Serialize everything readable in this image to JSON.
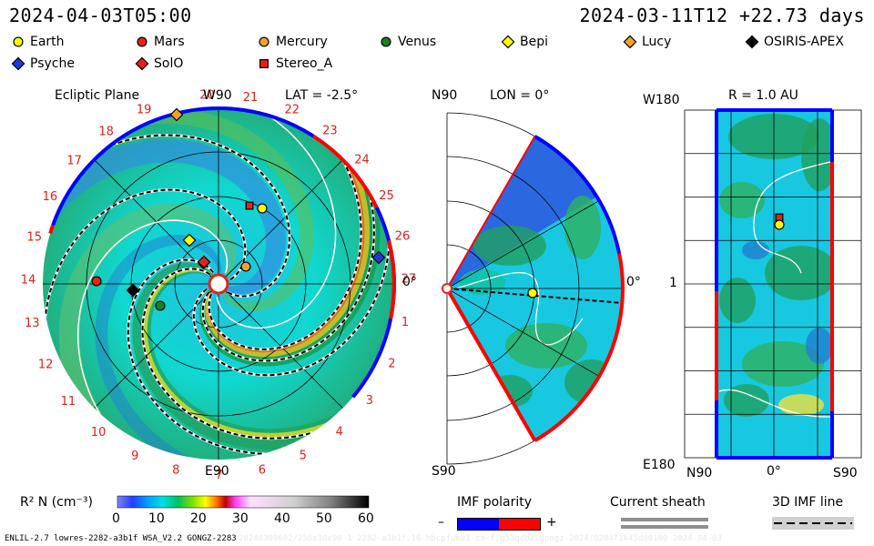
{
  "header": {
    "time": "2024-04-03T05:00",
    "model_run": "2024-03-11T12 +22.73 days"
  },
  "legend": [
    {
      "name": "Earth",
      "marker": "circle",
      "color": "#ffff00"
    },
    {
      "name": "Mars",
      "marker": "circle",
      "color": "#e8201a"
    },
    {
      "name": "Mercury",
      "marker": "circle",
      "color": "#f0a030"
    },
    {
      "name": "Venus",
      "marker": "circle",
      "color": "#1a8020"
    },
    {
      "name": "Bepi",
      "marker": "diamond",
      "color": "#ffff00"
    },
    {
      "name": "Lucy",
      "marker": "diamond",
      "color": "#f0a030"
    },
    {
      "name": "OSIRIS-APEX",
      "marker": "diamond",
      "color": "#000000"
    },
    {
      "name": "Psyche",
      "marker": "diamond",
      "color": "#1a3ae0"
    },
    {
      "name": "SolO",
      "marker": "diamond",
      "color": "#e8201a"
    },
    {
      "name": "Stereo_A",
      "marker": "square",
      "color": "#e8201a"
    }
  ],
  "ecliptic": {
    "title": "Ecliptic Plane",
    "top_label": "W90",
    "lat_label": "LAT = -2.5°",
    "right_label": "0°",
    "bottom_label": "E90",
    "carrington_ticks": [
      "20",
      "21",
      "22",
      "23",
      "24",
      "25",
      "26",
      "27",
      "1",
      "2",
      "3",
      "4",
      "5",
      "6",
      "7",
      "8",
      "9",
      "10",
      "11",
      "12",
      "13",
      "14",
      "15",
      "16",
      "17",
      "18",
      "19"
    ]
  },
  "meridional": {
    "top_left": "N90",
    "title": "LON = 0°",
    "right_label": "0°",
    "bottom_left": "S90"
  },
  "sphere": {
    "top_left": "W180",
    "title": "R = 1.0 AU",
    "mid_left": "1",
    "bottom_left": "E180",
    "x_ticks": [
      "N90",
      "0°",
      "S90"
    ]
  },
  "colorbar": {
    "label": "R² N (cm⁻³)",
    "ticks": [
      "0",
      "10",
      "20",
      "30",
      "40",
      "50",
      "60"
    ]
  },
  "imf": {
    "title": "IMF polarity",
    "minus": "–",
    "plus": "+",
    "colors": [
      "#0000ff",
      "#ff0000"
    ]
  },
  "sheath": {
    "title": "Current sheath"
  },
  "imfline": {
    "title": "3D IMF line"
  },
  "footer": {
    "left": "ENLIL-2.7 lowres-2282-a3b1f WSA_V2.2 GONGZ-2283",
    "right": "20240309602/256x30x90-1 2282-a3b1f.16-hbcpfume1-cs-f.g53qdb2.gongz-2024/0204T1k45d00100    2024-04-03"
  }
}
